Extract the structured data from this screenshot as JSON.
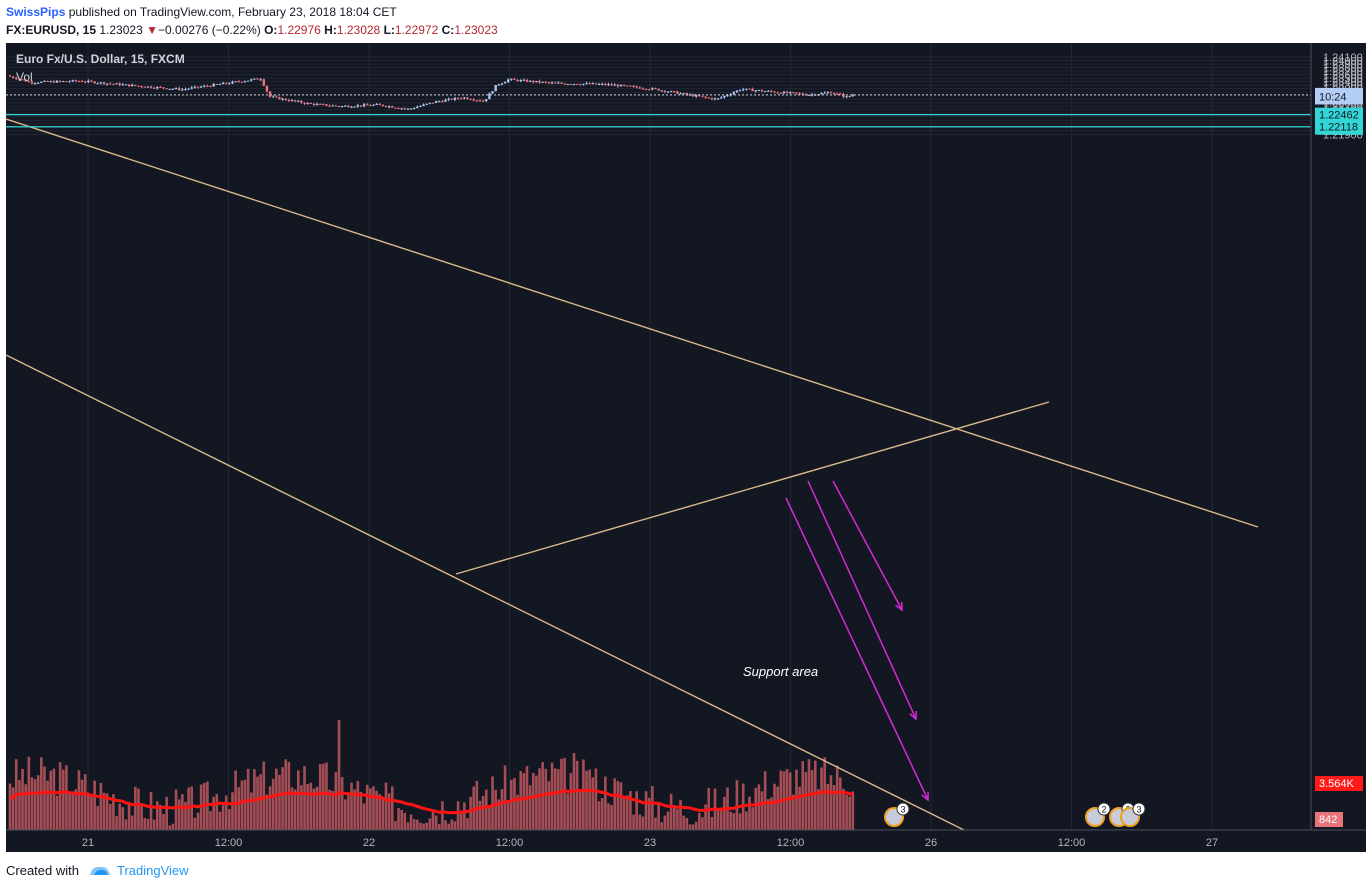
{
  "header": {
    "author": "SwissPips",
    "published_text": "published on TradingView.com, February 23, 2018 18:04 CET",
    "symbol": "FX:EURUSD, 15",
    "last": "1.23023",
    "change_arrow": "▼",
    "change": "−0.00276 (−0.22%)",
    "o_label": "O:",
    "o_value": "1.22976",
    "h_label": "H:",
    "h_value": "1.23028",
    "l_label": "L:",
    "l_value": "1.22972",
    "c_label": "C:",
    "c_value": "1.23023"
  },
  "footer": {
    "created_with": "Created with",
    "brand": "TradingView"
  },
  "chart_data": {
    "type": "candlestick",
    "title": "Euro Fx/U.S. Dollar, 15, FXCM",
    "volume_label": "Vol",
    "annotation": "Support area",
    "colors": {
      "background": "#131722",
      "up": "#a9c6f0",
      "down": "#e8737a",
      "volume": "#c0585e",
      "volume_ma": "#ff1414",
      "trendline": "#d9b98a",
      "support": "#33d6d6",
      "arrows": "#d52ad5",
      "price_label": "#b4cdf6",
      "vol_label": "#ff1a1a"
    },
    "y_axis": {
      "range": [
        1.2183,
        1.2413
      ],
      "ticks": [
        "1.24100",
        "1.24000",
        "1.23900",
        "1.23800",
        "1.23700",
        "1.23600",
        "1.23500",
        "1.23400",
        "1.23300",
        "1.23200",
        "1.23100",
        "1.23000",
        "1.22900",
        "1.22800",
        "1.22700",
        "1.22600",
        "1.22500",
        "1.22400",
        "1.22300",
        "1.22200",
        "1.22100",
        "1.22000",
        "1.21900"
      ]
    },
    "x_axis": {
      "ticks": [
        "21",
        "12:00",
        "22",
        "12:00",
        "23",
        "12:00",
        "26",
        "12:00",
        "27"
      ]
    },
    "price_labels": {
      "last": "1.23023",
      "countdown": "10:24",
      "support_upper": "1.22462",
      "support_lower": "1.22118",
      "vol_ma": "3.564K",
      "vol_last": "842"
    },
    "support_levels": [
      1.22462,
      1.22118
    ],
    "key_points": [
      {
        "time": "Feb 21 00:00",
        "price": 1.2357
      },
      {
        "time": "Feb 21 21:00",
        "price": 1.2349
      },
      {
        "time": "Feb 22 03:30",
        "price": 1.2275
      },
      {
        "time": "Feb 22 08:00",
        "price": 1.2262
      },
      {
        "time": "Feb 22 13:00",
        "price": 1.228
      },
      {
        "time": "Feb 22 15:30",
        "price": 1.2345
      },
      {
        "time": "Feb 23 00:00",
        "price": 1.2331
      },
      {
        "time": "Feb 23 08:30",
        "price": 1.2287
      },
      {
        "time": "Feb 23 11:30",
        "price": 1.2321
      },
      {
        "time": "Feb 23 18:00",
        "price": 1.23023
      }
    ],
    "event_badges": [
      "3",
      "2",
      "2",
      "3"
    ]
  }
}
